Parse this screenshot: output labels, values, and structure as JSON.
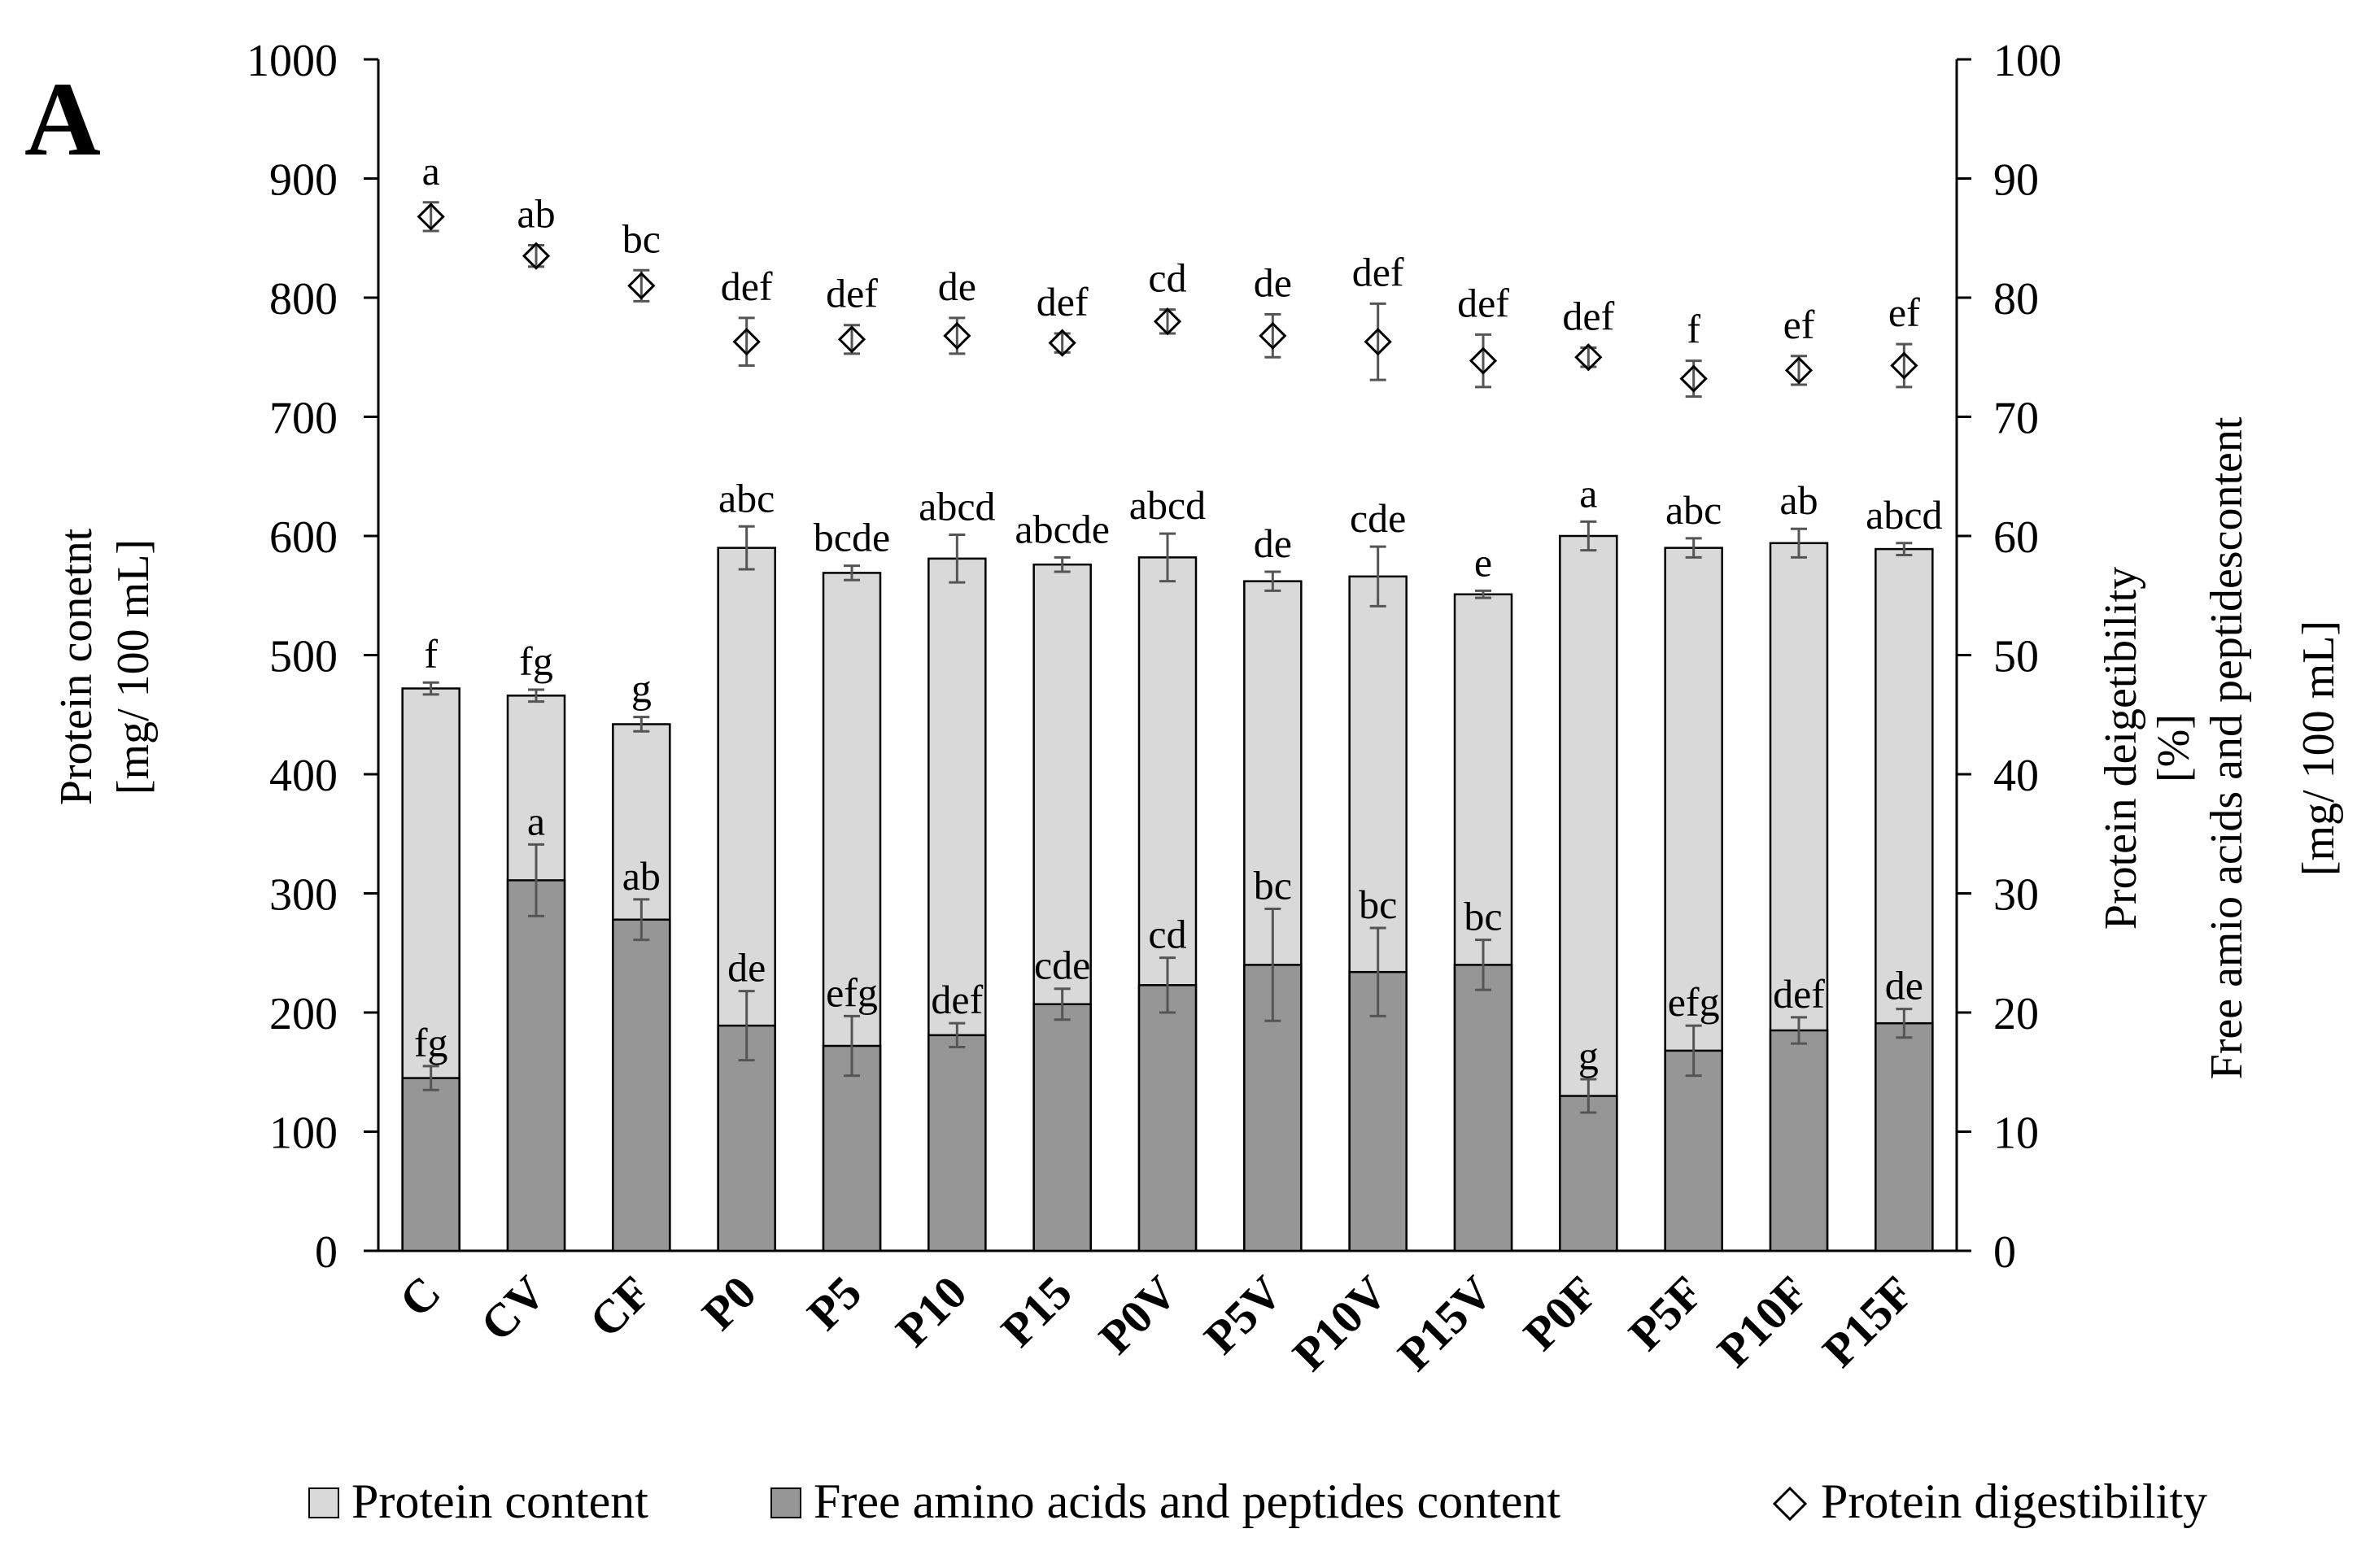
{
  "panel_label": "A",
  "chart_data": {
    "type": "bar",
    "stacked": "overlapping",
    "categories": [
      "C",
      "CV",
      "CF",
      "P0",
      "P5",
      "P10",
      "P15",
      "P0V",
      "P5V",
      "P10V",
      "P15V",
      "P0F",
      "P5F",
      "P10F",
      "P15F"
    ],
    "ylim": [
      0,
      1000
    ],
    "y_ticks": [
      0,
      100,
      200,
      300,
      400,
      500,
      600,
      700,
      800,
      900,
      1000
    ],
    "y2lim": [
      0,
      100
    ],
    "y2_ticks": [
      0,
      10,
      20,
      30,
      40,
      50,
      60,
      70,
      80,
      90,
      100
    ],
    "ylabel_line1": "Protein conetnt",
    "ylabel_line2": "[mg/ 100 mL]",
    "y2label_line1": "Protein deigetibility",
    "y2label_line2": "[%]",
    "y2label_line3": "Free amio acids and peptidescontent",
    "y2label_line4": "[mg/ 100 mL]",
    "grid": false,
    "legend_position": "bottom",
    "series": [
      {
        "name": "Protein content",
        "axis": "left",
        "kind": "bar",
        "color": "#d9d9d9",
        "values": [
          472,
          466,
          442,
          590,
          569,
          581,
          576,
          582,
          562,
          566,
          551,
          600,
          590,
          594,
          589
        ],
        "errors": [
          5,
          5,
          6,
          18,
          6,
          20,
          6,
          20,
          8,
          25,
          3,
          12,
          8,
          12,
          5
        ],
        "letters": [
          "f",
          "fg",
          "g",
          "abc",
          "bcde",
          "abcd",
          "abcde",
          "abcd",
          "de",
          "cde",
          "e",
          "a",
          "abc",
          "ab",
          "abcd"
        ]
      },
      {
        "name": "Free amino acids and peptides content",
        "axis": "left",
        "kind": "bar",
        "color": "#969696",
        "values": [
          145,
          311,
          278,
          189,
          172,
          181,
          207,
          223,
          240,
          234,
          240,
          130,
          168,
          185,
          191
        ],
        "errors": [
          10,
          30,
          17,
          29,
          25,
          10,
          13,
          23,
          47,
          37,
          21,
          14,
          21,
          11,
          12
        ],
        "letters": [
          "fg",
          "a",
          "ab",
          "de",
          "efg",
          "def",
          "cde",
          "cd",
          "bc",
          "bc",
          "bc",
          "g",
          "efg",
          "def",
          "de"
        ]
      },
      {
        "name": "Protein digestibility",
        "axis": "right",
        "kind": "scatter",
        "marker": "diamond",
        "values": [
          86.8,
          83.5,
          81.0,
          76.3,
          76.5,
          76.8,
          76.2,
          78.0,
          76.8,
          76.3,
          74.7,
          75.0,
          73.2,
          73.9,
          74.3
        ],
        "errors": [
          1.2,
          0.9,
          1.3,
          2.0,
          1.2,
          1.5,
          0.8,
          1.0,
          1.8,
          3.2,
          2.2,
          0.8,
          1.5,
          1.2,
          1.8
        ],
        "letters": [
          "a",
          "ab",
          "bc",
          "def",
          "def",
          "de",
          "def",
          "cd",
          "de",
          "def",
          "def",
          "def",
          "f",
          "ef",
          "ef"
        ]
      }
    ]
  }
}
